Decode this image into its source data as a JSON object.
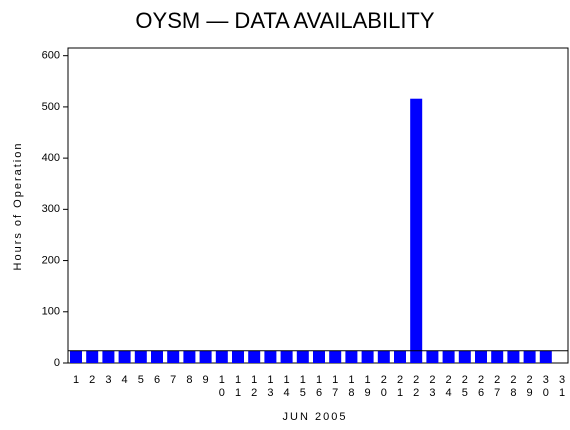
{
  "chart_data": {
    "type": "bar",
    "title": "OYSM — DATA AVAILABILITY",
    "x_label": "JUN 2005",
    "y_label": "Hours of Operation",
    "categories": [
      "1",
      "2",
      "3",
      "4",
      "5",
      "6",
      "7",
      "8",
      "9",
      "10",
      "11",
      "12",
      "13",
      "14",
      "15",
      "16",
      "17",
      "18",
      "19",
      "20",
      "21",
      "22",
      "23",
      "24",
      "25",
      "26",
      "27",
      "28",
      "29",
      "30",
      "31"
    ],
    "values": [
      24,
      24,
      24,
      24,
      24,
      24,
      24,
      24,
      24,
      24,
      24,
      24,
      24,
      24,
      24,
      24,
      24,
      24,
      24,
      24,
      24,
      516,
      24,
      24,
      24,
      24,
      24,
      24,
      24,
      24,
      null
    ],
    "color": "#0000ff",
    "reference_line": 24,
    "ylim": [
      0,
      615
    ],
    "yticks": [
      0,
      100,
      200,
      300,
      400,
      500,
      600
    ]
  }
}
